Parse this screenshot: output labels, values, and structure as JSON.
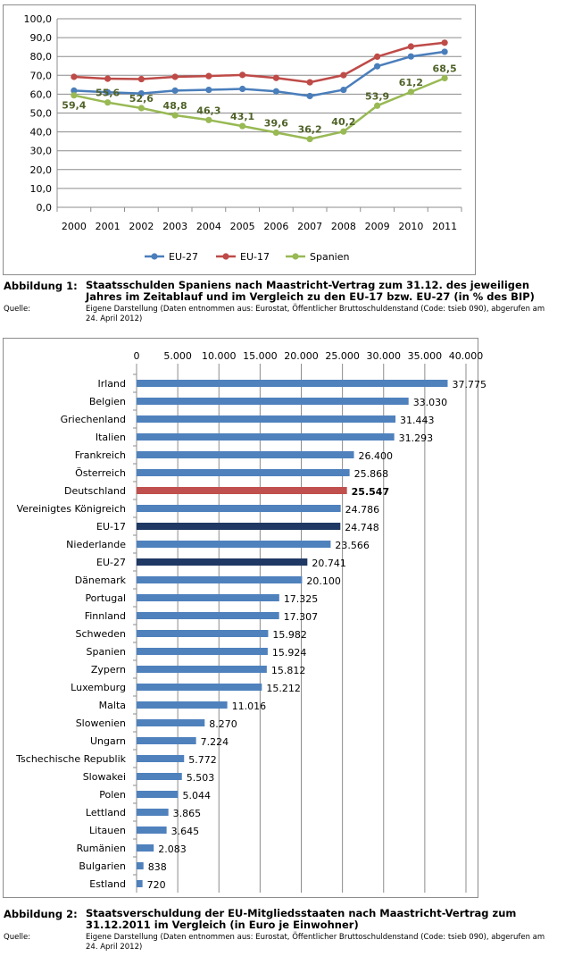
{
  "chart_data": [
    {
      "type": "line",
      "x": [
        "2000",
        "2001",
        "2002",
        "2003",
        "2004",
        "2005",
        "2006",
        "2007",
        "2008",
        "2009",
        "2010",
        "2011"
      ],
      "ylim": [
        0,
        100
      ],
      "yticks": [
        "0,0",
        "10,0",
        "20,0",
        "30,0",
        "40,0",
        "50,0",
        "60,0",
        "70,0",
        "80,0",
        "90,0",
        "100,0"
      ],
      "grid": true,
      "legend_position": "bottom",
      "series": [
        {
          "name": "EU-27",
          "color": "#4a7ebb",
          "values": [
            61.9,
            61.0,
            60.4,
            61.9,
            62.3,
            62.8,
            61.5,
            59.0,
            62.3,
            74.8,
            80.0,
            82.5
          ]
        },
        {
          "name": "EU-17",
          "color": "#be4b48",
          "values": [
            69.2,
            68.2,
            68.0,
            69.2,
            69.6,
            70.2,
            68.6,
            66.3,
            70.1,
            79.9,
            85.3,
            87.3
          ]
        },
        {
          "name": "Spanien",
          "color": "#98b954",
          "values": [
            59.4,
            55.6,
            52.6,
            48.8,
            46.3,
            43.1,
            39.6,
            36.2,
            40.2,
            53.9,
            61.2,
            68.5
          ],
          "labels": [
            "59,4",
            "55,6",
            "52,6",
            "48,8",
            "46,3",
            "43,1",
            "39,6",
            "36,2",
            "40,2",
            "53,9",
            "61,2",
            "68,5"
          ]
        }
      ],
      "caption": {
        "label": "Abbildung 1:",
        "text": "Staatsschulden Spaniens nach Maastricht-Vertrag zum 31.12. des jeweiligen Jahres im Zeitablauf und im Vergleich zu den EU-17 bzw. EU-27 (in % des BIP)",
        "source_label": "Quelle:",
        "source_text": "Eigene Darstellung (Daten entnommen aus: Eurostat, Öffentlicher Bruttoschuldenstand (Code: tsieb 090), abgerufen am 24. April 2012)"
      }
    },
    {
      "type": "bar",
      "orientation": "horizontal",
      "xlim": [
        0,
        40000
      ],
      "xticks": [
        "0",
        "5.000",
        "10.000",
        "15.000",
        "20.000",
        "25.000",
        "30.000",
        "35.000",
        "40.000"
      ],
      "grid": true,
      "default_color": "#4f81bd",
      "categories": [
        "Irland",
        "Belgien",
        "Griechenland",
        "Italien",
        "Frankreich",
        "Österreich",
        "Deutschland",
        "Vereinigtes Königreich",
        "EU-17",
        "Niederlande",
        "EU-27",
        "Dänemark",
        "Portugal",
        "Finnland",
        "Schweden",
        "Spanien",
        "Zypern",
        "Luxemburg",
        "Malta",
        "Slowenien",
        "Ungarn",
        "Tschechische Republik",
        "Slowakei",
        "Polen",
        "Lettland",
        "Litauen",
        "Rumänien",
        "Bulgarien",
        "Estland"
      ],
      "values": [
        37775,
        33030,
        31443,
        31293,
        26400,
        25868,
        25547,
        24786,
        24748,
        23566,
        20741,
        20100,
        17325,
        17307,
        15982,
        15924,
        15812,
        15212,
        11016,
        8270,
        7224,
        5772,
        5503,
        5044,
        3865,
        3645,
        2083,
        838,
        720
      ],
      "labels": [
        "37.775",
        "33.030",
        "31.443",
        "31.293",
        "26.400",
        "25.868",
        "25.547",
        "24.786",
        "24.748",
        "23.566",
        "20.741",
        "20.100",
        "17.325",
        "17.307",
        "15.982",
        "15.924",
        "15.812",
        "15.212",
        "11.016",
        "8.270",
        "7.224",
        "5.772",
        "5.503",
        "5.044",
        "3.865",
        "3.645",
        "2.083",
        "838",
        "720"
      ],
      "highlights": {
        "Deutschland": "#c0504d",
        "EU-17": "#1f3864",
        "EU-27": "#1f3864"
      },
      "bold_labels": [
        "Deutschland"
      ],
      "caption": {
        "label": "Abbildung 2:",
        "text": "Staatsverschuldung der EU-Mitgliedsstaaten nach Maastricht-Vertrag zum 31.12.2011 im Vergleich (in Euro je Einwohner)",
        "source_label": "Quelle:",
        "source_text": "Eigene Darstellung (Daten entnommen aus: Eurostat, Öffentlicher Bruttoschuldenstand (Code: tsieb 090), abgerufen am 24. April 2012)"
      }
    }
  ]
}
